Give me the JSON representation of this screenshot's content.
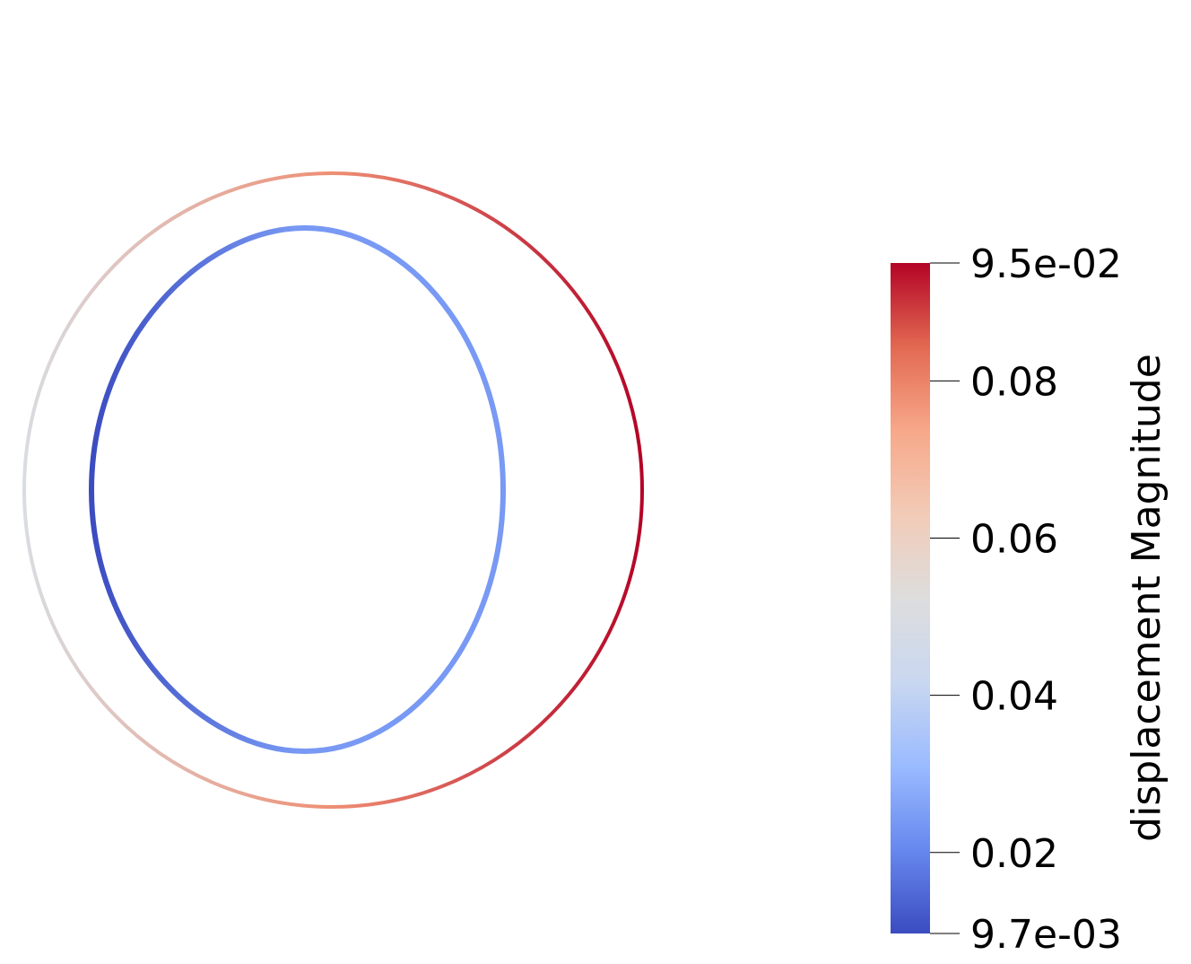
{
  "colorbar": {
    "title": "displacement Magnitude",
    "range": [
      0.0097,
      0.095
    ],
    "colormap": "coolwarm",
    "colormap_stops": [
      "#3b4cc0",
      "#6788ee",
      "#9abbff",
      "#c9d7f0",
      "#dddddd",
      "#f2cbb7",
      "#f7a889",
      "#e26952",
      "#b40426"
    ],
    "ticks": [
      {
        "value": 0.095,
        "label": "9.5e-02"
      },
      {
        "value": 0.08,
        "label": "0.08"
      },
      {
        "value": 0.06,
        "label": "0.06"
      },
      {
        "value": 0.04,
        "label": "0.04"
      },
      {
        "value": 0.02,
        "label": "0.02"
      },
      {
        "value": 0.0097,
        "label": "9.7e-03"
      }
    ]
  },
  "rings": [
    {
      "name": "outer-ring",
      "value_left": 0.05,
      "value_top_bottom": 0.078,
      "value_right": 0.095
    },
    {
      "name": "inner-ring",
      "value_left": 0.0097,
      "value_top_bottom": 0.024,
      "value_right": 0.024
    }
  ]
}
